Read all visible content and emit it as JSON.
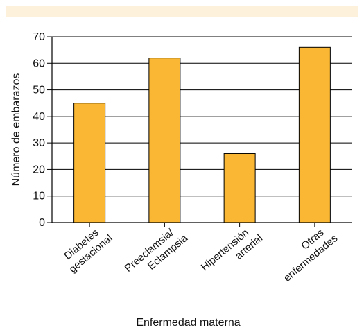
{
  "colors": {
    "bar": "#f9b733",
    "bar_stroke": "#000000",
    "band": "#fdf1dc",
    "grid": "#000000"
  },
  "chart_data": {
    "type": "bar",
    "categories": [
      [
        "Diabetes",
        "gestacional"
      ],
      [
        "Preeclamsia/",
        "Eclampsia"
      ],
      [
        "Hipertensión",
        "arterial"
      ],
      [
        "Otras",
        "enfermedades"
      ]
    ],
    "values": [
      45,
      62,
      26,
      66
    ],
    "xlabel": "Enfermedad materna",
    "ylabel": "Número de embarazos",
    "ylim": [
      0,
      70
    ],
    "yticks": [
      0,
      10,
      20,
      30,
      40,
      50,
      60,
      70
    ],
    "grid": true
  }
}
